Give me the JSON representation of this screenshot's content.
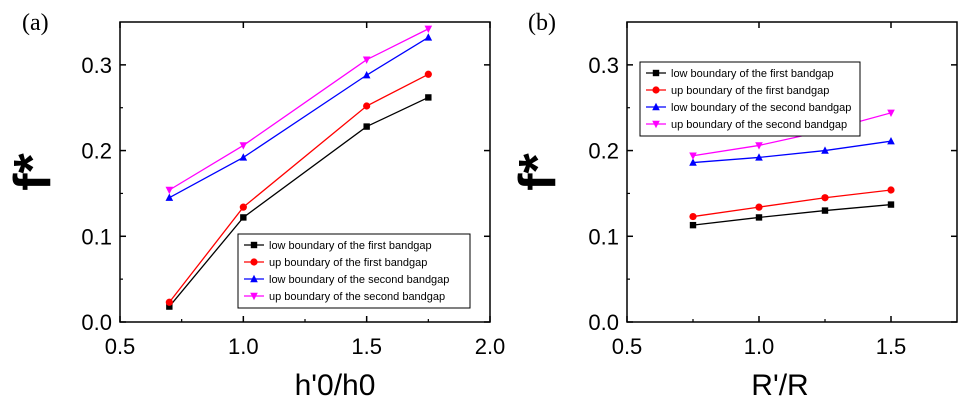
{
  "chart_data": [
    {
      "type": "line",
      "panel_label": "(a)",
      "xlabel": "h'0/h0",
      "ylabel": "f*",
      "xlim": [
        0.5,
        2.0
      ],
      "ylim": [
        0.0,
        0.35
      ],
      "xticks": [
        "0.5",
        "1.0",
        "1.5",
        "2.0"
      ],
      "yticks": [
        "0.0",
        "0.1",
        "0.2",
        "0.3"
      ],
      "legend_position": "bottom-right",
      "x": [
        0.7,
        1.0,
        1.5,
        1.75
      ],
      "series": [
        {
          "name": "low boundary of the first bandgap",
          "values": [
            0.018,
            0.122,
            0.228,
            0.262
          ],
          "color": "#000000",
          "marker": "square"
        },
        {
          "name": "up boundary of the first bandgap",
          "values": [
            0.023,
            0.134,
            0.252,
            0.289
          ],
          "color": "#ff0000",
          "marker": "circle"
        },
        {
          "name": "low boundary of the second bandgap",
          "values": [
            0.145,
            0.192,
            0.288,
            0.332
          ],
          "color": "#0000ff",
          "marker": "triangle-up"
        },
        {
          "name": "up boundary of the second bandgap",
          "values": [
            0.154,
            0.206,
            0.306,
            0.342
          ],
          "color": "#ff00ff",
          "marker": "triangle-down"
        }
      ]
    },
    {
      "type": "line",
      "panel_label": "(b)",
      "xlabel": "R'/R",
      "ylabel": "f*",
      "xlim": [
        0.5,
        1.75
      ],
      "ylim": [
        0.0,
        0.35
      ],
      "xticks": [
        "0.5",
        "1.0",
        "1.5"
      ],
      "yticks": [
        "0.0",
        "0.1",
        "0.2",
        "0.3"
      ],
      "legend_position": "top-left",
      "x": [
        0.75,
        1.0,
        1.25,
        1.5
      ],
      "series": [
        {
          "name": "low boundary of the first bandgap",
          "values": [
            0.113,
            0.122,
            0.13,
            0.137
          ],
          "color": "#000000",
          "marker": "square"
        },
        {
          "name": "up boundary of the first bandgap",
          "values": [
            0.123,
            0.134,
            0.145,
            0.154
          ],
          "color": "#ff0000",
          "marker": "circle"
        },
        {
          "name": "low boundary of the second bandgap",
          "values": [
            0.186,
            0.192,
            0.2,
            0.211
          ],
          "color": "#0000ff",
          "marker": "triangle-up"
        },
        {
          "name": "up boundary of the second bandgap",
          "values": [
            0.194,
            0.206,
            0.223,
            0.244
          ],
          "color": "#ff00ff",
          "marker": "triangle-down"
        }
      ]
    }
  ]
}
